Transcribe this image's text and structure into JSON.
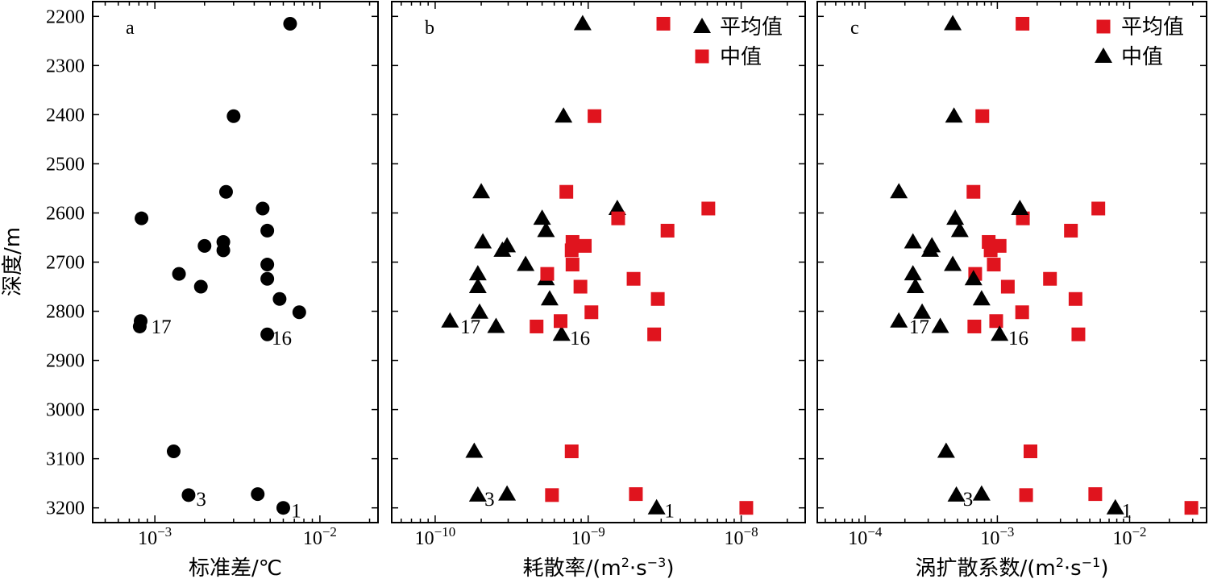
{
  "y_axis_label": "深度/m",
  "chart_data": [
    {
      "panel": "a",
      "type": "scatter",
      "xlabel": "标准差/℃",
      "xscale": "log",
      "xlim": [
        0.00042,
        0.0225
      ],
      "ylim": [
        3230,
        2170
      ],
      "yticks": [
        2200,
        2300,
        2400,
        2500,
        2600,
        2700,
        2800,
        2900,
        3000,
        3100,
        3200
      ],
      "xticks": [
        {
          "value": 0.001,
          "base": "10",
          "exp": "−3"
        },
        {
          "value": 0.01,
          "base": "10",
          "exp": "−2"
        }
      ],
      "legend": [],
      "series": [
        {
          "name": "",
          "marker": "circle",
          "color": "#000000",
          "points": [
            {
              "x": 0.0066,
              "y": 2215
            },
            {
              "x": 0.003,
              "y": 2403
            },
            {
              "x": 0.0027,
              "y": 2557
            },
            {
              "x": 0.00083,
              "y": 2611
            },
            {
              "x": 0.0045,
              "y": 2591
            },
            {
              "x": 0.0048,
              "y": 2636
            },
            {
              "x": 0.0026,
              "y": 2659
            },
            {
              "x": 0.002,
              "y": 2667
            },
            {
              "x": 0.0026,
              "y": 2676
            },
            {
              "x": 0.0048,
              "y": 2705
            },
            {
              "x": 0.0014,
              "y": 2724
            },
            {
              "x": 0.0048,
              "y": 2734
            },
            {
              "x": 0.0019,
              "y": 2750
            },
            {
              "x": 0.0057,
              "y": 2775
            },
            {
              "x": 0.0075,
              "y": 2802
            },
            {
              "x": 0.00082,
              "y": 2820
            },
            {
              "x": 0.00081,
              "y": 2831
            },
            {
              "x": 0.0048,
              "y": 2847
            },
            {
              "x": 0.0013,
              "y": 3085
            },
            {
              "x": 0.0016,
              "y": 3174
            },
            {
              "x": 0.0042,
              "y": 3172
            },
            {
              "x": 0.006,
              "y": 3200
            }
          ]
        }
      ],
      "annotations": [
        {
          "text": "17",
          "x": 0.00095,
          "y": 2830
        },
        {
          "text": "16",
          "x": 0.0051,
          "y": 2853
        },
        {
          "text": "3",
          "x": 0.00178,
          "y": 3181
        },
        {
          "text": "1",
          "x": 0.0067,
          "y": 3205
        }
      ]
    },
    {
      "panel": "b",
      "type": "scatter",
      "xlabel": "耗散率/(m²·s⁻³)",
      "xlabel_parts": {
        "pre": "耗散率/(m",
        "sup1": "2",
        "mid": "·s",
        "sup2": "−3",
        "post": ")"
      },
      "xscale": "log",
      "xlim": [
        5.2e-11,
        2.62e-08
      ],
      "ylim": [
        3230,
        2170
      ],
      "yticks": [
        2200,
        2300,
        2400,
        2500,
        2600,
        2700,
        2800,
        2900,
        3000,
        3100,
        3200
      ],
      "xticks": [
        {
          "value": 1e-10,
          "base": "10",
          "exp": "−10"
        },
        {
          "value": 1e-09,
          "base": "10",
          "exp": "−9"
        },
        {
          "value": 1e-08,
          "base": "10",
          "exp": "−8"
        }
      ],
      "legend": [
        {
          "label": "平均值",
          "marker": "triangle",
          "color": "#000000"
        },
        {
          "label": "中值",
          "marker": "square",
          "color": "#e0141e"
        }
      ],
      "series": [
        {
          "name": "平均值",
          "marker": "triangle",
          "color": "#000000",
          "points": [
            {
              "x": 9.2e-10,
              "y": 2215
            },
            {
              "x": 6.9e-10,
              "y": 2403
            },
            {
              "x": 2e-10,
              "y": 2557
            },
            {
              "x": 1.55e-09,
              "y": 2591
            },
            {
              "x": 5e-10,
              "y": 2611
            },
            {
              "x": 5.3e-10,
              "y": 2636
            },
            {
              "x": 2.05e-10,
              "y": 2659
            },
            {
              "x": 2.95e-10,
              "y": 2667
            },
            {
              "x": 2.75e-10,
              "y": 2676
            },
            {
              "x": 3.9e-10,
              "y": 2705
            },
            {
              "x": 1.9e-10,
              "y": 2724
            },
            {
              "x": 5.3e-10,
              "y": 2734
            },
            {
              "x": 1.9e-10,
              "y": 2750
            },
            {
              "x": 5.6e-10,
              "y": 2775
            },
            {
              "x": 1.95e-10,
              "y": 2802
            },
            {
              "x": 1.25e-10,
              "y": 2820
            },
            {
              "x": 2.5e-10,
              "y": 2831
            },
            {
              "x": 6.7e-10,
              "y": 2847
            },
            {
              "x": 1.8e-10,
              "y": 3085
            },
            {
              "x": 1.9e-10,
              "y": 3174
            },
            {
              "x": 2.95e-10,
              "y": 3172
            },
            {
              "x": 2.8e-09,
              "y": 3200
            }
          ]
        },
        {
          "name": "中值",
          "marker": "square",
          "color": "#e0141e",
          "points": [
            {
              "x": 3.1e-09,
              "y": 2215
            },
            {
              "x": 1.1e-09,
              "y": 2403
            },
            {
              "x": 7.2e-10,
              "y": 2557
            },
            {
              "x": 6.1e-09,
              "y": 2591
            },
            {
              "x": 1.57e-09,
              "y": 2611
            },
            {
              "x": 3.3e-09,
              "y": 2636
            },
            {
              "x": 7.9e-10,
              "y": 2659
            },
            {
              "x": 9.5e-10,
              "y": 2667
            },
            {
              "x": 7.8e-10,
              "y": 2676
            },
            {
              "x": 7.9e-10,
              "y": 2705
            },
            {
              "x": 5.4e-10,
              "y": 2724
            },
            {
              "x": 1.98e-09,
              "y": 2734
            },
            {
              "x": 8.9e-10,
              "y": 2750
            },
            {
              "x": 2.85e-09,
              "y": 2775
            },
            {
              "x": 1.05e-09,
              "y": 2802
            },
            {
              "x": 6.6e-10,
              "y": 2820
            },
            {
              "x": 4.6e-10,
              "y": 2831
            },
            {
              "x": 2.7e-09,
              "y": 2847
            },
            {
              "x": 7.8e-10,
              "y": 3085
            },
            {
              "x": 5.8e-10,
              "y": 3174
            },
            {
              "x": 2.05e-09,
              "y": 3172
            },
            {
              "x": 1.08e-08,
              "y": 3200
            }
          ]
        }
      ],
      "annotations": [
        {
          "text": "17",
          "x": 1.46e-10,
          "y": 2830
        },
        {
          "text": "16",
          "x": 7.6e-10,
          "y": 2853
        },
        {
          "text": "3",
          "x": 2.1e-10,
          "y": 3181
        },
        {
          "text": "1",
          "x": 3.15e-09,
          "y": 3205
        }
      ]
    },
    {
      "panel": "c",
      "type": "scatter",
      "xlabel": "涡扩散系数/(m²·s⁻¹)",
      "xlabel_parts": {
        "pre": "涡扩散系数/(m",
        "sup1": "2",
        "mid": "·s",
        "sup2": "−1",
        "post": ")"
      },
      "xscale": "log",
      "xlim": [
        4.35e-05,
        0.0382
      ],
      "ylim": [
        3230,
        2170
      ],
      "yticks": [
        2200,
        2300,
        2400,
        2500,
        2600,
        2700,
        2800,
        2900,
        3000,
        3100,
        3200
      ],
      "xticks": [
        {
          "value": 0.0001,
          "base": "10",
          "exp": "−4"
        },
        {
          "value": 0.001,
          "base": "10",
          "exp": "−3"
        },
        {
          "value": 0.01,
          "base": "10",
          "exp": "−2"
        }
      ],
      "legend": [
        {
          "label": "平均值",
          "marker": "square",
          "color": "#e0141e"
        },
        {
          "label": "中值",
          "marker": "triangle",
          "color": "#000000"
        }
      ],
      "series": [
        {
          "name": "平均值",
          "marker": "square",
          "color": "#e0141e",
          "points": [
            {
              "x": 0.00155,
              "y": 2215
            },
            {
              "x": 0.00077,
              "y": 2403
            },
            {
              "x": 0.00066,
              "y": 2557
            },
            {
              "x": 0.0058,
              "y": 2591
            },
            {
              "x": 0.00156,
              "y": 2611
            },
            {
              "x": 0.0036,
              "y": 2636
            },
            {
              "x": 0.00086,
              "y": 2659
            },
            {
              "x": 0.00104,
              "y": 2667
            },
            {
              "x": 0.00089,
              "y": 2676
            },
            {
              "x": 0.00094,
              "y": 2705
            },
            {
              "x": 0.00068,
              "y": 2724
            },
            {
              "x": 0.0025,
              "y": 2734
            },
            {
              "x": 0.0012,
              "y": 2750
            },
            {
              "x": 0.0039,
              "y": 2775
            },
            {
              "x": 0.00154,
              "y": 2802
            },
            {
              "x": 0.00098,
              "y": 2820
            },
            {
              "x": 0.00067,
              "y": 2831
            },
            {
              "x": 0.0041,
              "y": 2847
            },
            {
              "x": 0.00178,
              "y": 3085
            },
            {
              "x": 0.00165,
              "y": 3174
            },
            {
              "x": 0.0055,
              "y": 3172
            },
            {
              "x": 0.0293,
              "y": 3200
            }
          ]
        },
        {
          "name": "中值",
          "marker": "triangle",
          "color": "#000000",
          "points": [
            {
              "x": 0.00046,
              "y": 2215
            },
            {
              "x": 0.00047,
              "y": 2403
            },
            {
              "x": 0.00018,
              "y": 2557
            },
            {
              "x": 0.00148,
              "y": 2591
            },
            {
              "x": 0.00048,
              "y": 2611
            },
            {
              "x": 0.00052,
              "y": 2636
            },
            {
              "x": 0.00023,
              "y": 2659
            },
            {
              "x": 0.00032,
              "y": 2667
            },
            {
              "x": 0.00031,
              "y": 2676
            },
            {
              "x": 0.00046,
              "y": 2705
            },
            {
              "x": 0.00023,
              "y": 2724
            },
            {
              "x": 0.00066,
              "y": 2734
            },
            {
              "x": 0.00024,
              "y": 2750
            },
            {
              "x": 0.00076,
              "y": 2775
            },
            {
              "x": 0.00027,
              "y": 2802
            },
            {
              "x": 0.00018,
              "y": 2820
            },
            {
              "x": 0.00037,
              "y": 2831
            },
            {
              "x": 0.00104,
              "y": 2847
            },
            {
              "x": 0.00041,
              "y": 3085
            },
            {
              "x": 0.00049,
              "y": 3174
            },
            {
              "x": 0.00076,
              "y": 3172
            },
            {
              "x": 0.0078,
              "y": 3200
            }
          ]
        }
      ],
      "annotations": [
        {
          "text": "17",
          "x": 0.000215,
          "y": 2830
        },
        {
          "text": "16",
          "x": 0.00121,
          "y": 2853
        },
        {
          "text": "3",
          "x": 0.00055,
          "y": 3181
        },
        {
          "text": "1",
          "x": 0.0087,
          "y": 3205
        }
      ]
    }
  ]
}
